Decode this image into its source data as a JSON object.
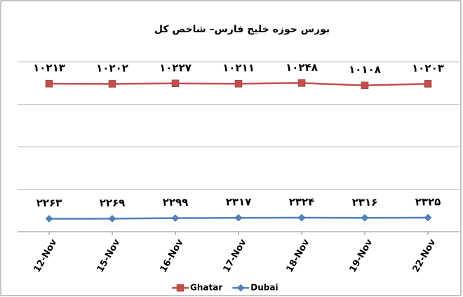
{
  "chart_data": {
    "type": "line",
    "title": "بورس حوزه خلیج فارس– شاخص کل",
    "categories": [
      "12-Nov",
      "15-Nov",
      "16-Nov",
      "17-Nov",
      "18-Nov",
      "19-Nov",
      "22-Nov"
    ],
    "series": [
      {
        "name": "Ghatar",
        "color": "#c0504d",
        "marker": "square",
        "values": [
          10213,
          10202,
          10227,
          10211,
          10248,
          10108,
          10203
        ],
        "value_labels": [
          "۱۰۲۱۳",
          "۱۰۲۰۲",
          "۱۰۲۲۷",
          "۱۰۲۱۱",
          "۱۰۲۴۸",
          "۱۰۱۰۸",
          "۱۰۲۰۳"
        ]
      },
      {
        "name": "Dubai",
        "color": "#4f81bd",
        "marker": "diamond",
        "values": [
          2263,
          2269,
          2299,
          2317,
          2324,
          2316,
          2325
        ],
        "value_labels": [
          "۲۲۶۳",
          "۲۲۶۹",
          "۲۲۹۹",
          "۲۳۱۷",
          "۲۳۲۴",
          "۲۳۱۶",
          "۲۳۲۵"
        ]
      }
    ],
    "ylim": [
      1500,
      11500
    ],
    "yticks": [
      1500,
      4000,
      6500,
      9000,
      11500
    ],
    "grid": true,
    "legend": "bottom"
  }
}
